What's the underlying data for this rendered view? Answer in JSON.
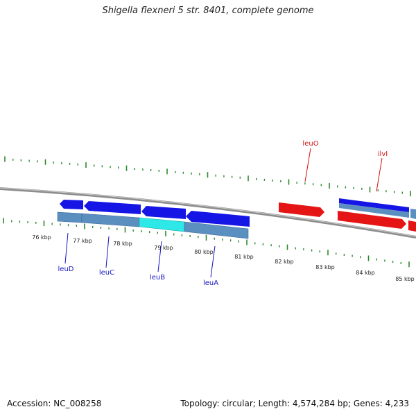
{
  "title": "Shigella flexneri 5 str. 8401, complete genome",
  "footer": {
    "accession": "Accession: NC_008258",
    "stats": "Topology: circular; Length: 4,574,284 bp; Genes: 4,233"
  },
  "colors": {
    "backbone": "#8c8c8c",
    "tick": "#2a8a2a",
    "forward_gene": "#1515e6",
    "reverse_gene": "#e61515",
    "cds": "#5b8fc0",
    "highlight": "#2ee8e8",
    "blue_label": "#1515c0",
    "red_label": "#d01010"
  },
  "kbp_labels": [
    "76 kbp",
    "77 kbp",
    "78 kbp",
    "79 kbp",
    "80 kbp",
    "81 kbp",
    "82 kbp",
    "83 kbp",
    "84 kbp",
    "85 kbp"
  ],
  "gene_labels": [
    {
      "name": "leuD",
      "strand": "reverse"
    },
    {
      "name": "leuC",
      "strand": "reverse"
    },
    {
      "name": "leuB",
      "strand": "reverse"
    },
    {
      "name": "leuA",
      "strand": "reverse"
    },
    {
      "name": "leuO",
      "strand": "forward"
    },
    {
      "name": "ilvI",
      "strand": "forward"
    }
  ]
}
